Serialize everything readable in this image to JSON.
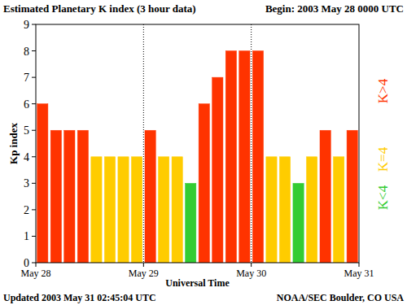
{
  "chart_data": {
    "type": "bar",
    "title": "Estimated Planetary K index (3 hour data)",
    "subtitle": "Begin: 2003 May 28 0000 UTC",
    "x_label": "Universal Time",
    "y_label": "Kp index",
    "x": [
      1.5,
      4.5,
      7.5,
      10.5,
      13.5,
      16.5,
      19.5,
      22.5,
      25.5,
      28.5,
      31.5,
      34.5,
      37.5,
      40.5,
      43.5,
      46.5,
      49.5,
      52.5,
      55.5,
      58.5,
      61.5,
      64.5,
      67.5,
      70.5
    ],
    "series": [
      {
        "name": "K>4",
        "color": "#ff3300",
        "values": [
          6,
          5,
          5,
          5,
          null,
          null,
          null,
          null,
          5,
          null,
          null,
          null,
          6,
          7,
          8,
          8,
          8,
          null,
          null,
          null,
          null,
          5,
          null,
          5
        ]
      },
      {
        "name": "K=4",
        "color": "#ffcc00",
        "values": [
          null,
          null,
          null,
          null,
          4,
          4,
          4,
          4,
          null,
          4,
          4,
          null,
          null,
          null,
          null,
          null,
          null,
          4,
          4,
          null,
          4,
          null,
          4,
          null
        ]
      },
      {
        "name": "K<4",
        "color": "#33cc33",
        "values": [
          null,
          null,
          null,
          null,
          null,
          null,
          null,
          null,
          null,
          null,
          null,
          3,
          null,
          null,
          null,
          null,
          null,
          null,
          null,
          3,
          null,
          null,
          null,
          null
        ]
      }
    ],
    "xlim": [
      0,
      72
    ],
    "xticks": [
      {
        "value": 0,
        "label": "May 28"
      },
      {
        "value": 24,
        "label": "May 29"
      },
      {
        "value": 48,
        "label": "May 30"
      },
      {
        "value": 72,
        "label": "May 31"
      }
    ],
    "ylim": [
      0,
      9
    ],
    "yticks": [
      0,
      1,
      2,
      3,
      4,
      5,
      6,
      7,
      8,
      9
    ],
    "grid": true,
    "legend": "right",
    "annotations": [
      "Updated 2003 May 31 02:45:04 UTC",
      "NOAA/SEC Boulder, CO USA"
    ]
  }
}
